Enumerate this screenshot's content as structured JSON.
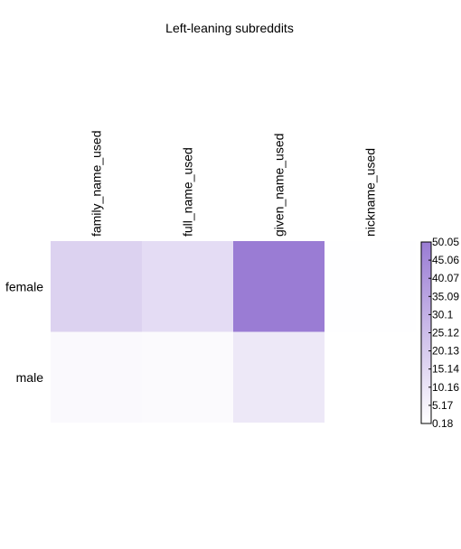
{
  "chart_data": {
    "type": "heatmap",
    "title": "Left-leaning subreddits",
    "columns": [
      "family_name_used",
      "full_name_used",
      "given_name_used",
      "nickname_used"
    ],
    "rows": [
      "female",
      "male"
    ],
    "values": [
      [
        17.5,
        13.5,
        50.05,
        0.5
      ],
      [
        2.5,
        2.0,
        9.0,
        0.18
      ]
    ],
    "color_scale": {
      "min": 0.18,
      "max": 50.05,
      "low_color": "#ffffff",
      "high_color": "#9a7cd4",
      "ticks": [
        "50.05",
        "45.06",
        "40.07",
        "35.09",
        "30.1",
        "25.12",
        "20.13",
        "15.14",
        "10.16",
        "5.17",
        "0.18"
      ]
    }
  }
}
